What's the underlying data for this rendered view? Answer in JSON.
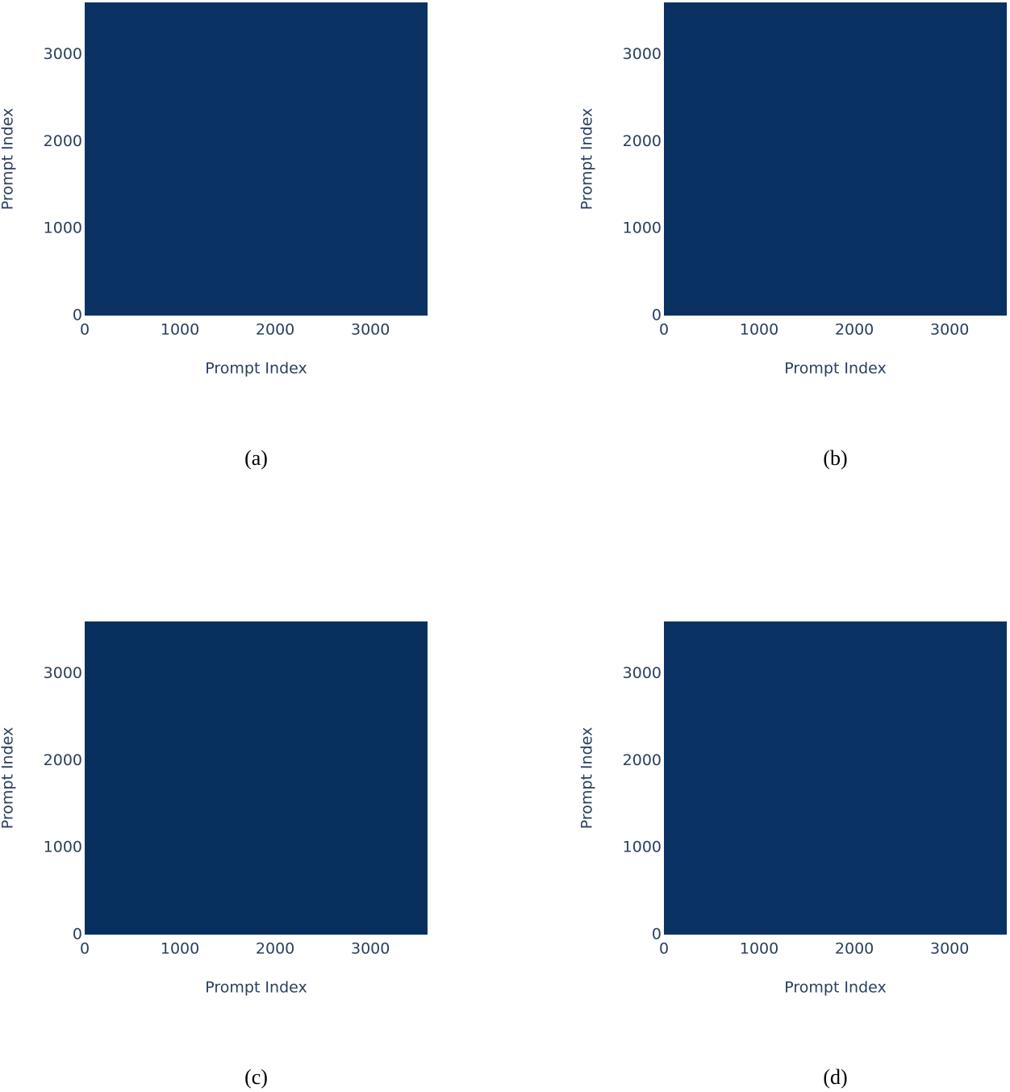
{
  "chart_data": [
    {
      "type": "heatmap",
      "caption": "(a)",
      "xlabel": "Prompt Index",
      "ylabel": "Prompt Index",
      "color": "#0a3262",
      "xlim": [
        0,
        3600
      ],
      "ylim": [
        0,
        3600
      ],
      "xticks": [
        0,
        1000,
        2000,
        3000
      ],
      "yticks": [
        0,
        1000,
        2000,
        3000
      ]
    },
    {
      "type": "heatmap",
      "caption": "(b)",
      "xlabel": "Prompt Index",
      "ylabel": "Prompt Index",
      "color": "#093161",
      "xlim": [
        0,
        3600
      ],
      "ylim": [
        0,
        3600
      ],
      "xticks": [
        0,
        1000,
        2000,
        3000
      ],
      "yticks": [
        0,
        1000,
        2000,
        3000
      ]
    },
    {
      "type": "heatmap",
      "caption": "(c)",
      "xlabel": "Prompt Index",
      "ylabel": "Prompt Index",
      "color": "#08305f",
      "xlim": [
        0,
        3600
      ],
      "ylim": [
        0,
        3600
      ],
      "xticks": [
        0,
        1000,
        2000,
        3000
      ],
      "yticks": [
        0,
        1000,
        2000,
        3000
      ]
    },
    {
      "type": "heatmap",
      "caption": "(d)",
      "xlabel": "Prompt Index",
      "ylabel": "Prompt Index",
      "color": "#0a3363",
      "xlim": [
        0,
        3600
      ],
      "ylim": [
        0,
        3600
      ],
      "xticks": [
        0,
        1000,
        2000,
        3000
      ],
      "yticks": [
        0,
        1000,
        2000,
        3000
      ]
    }
  ]
}
